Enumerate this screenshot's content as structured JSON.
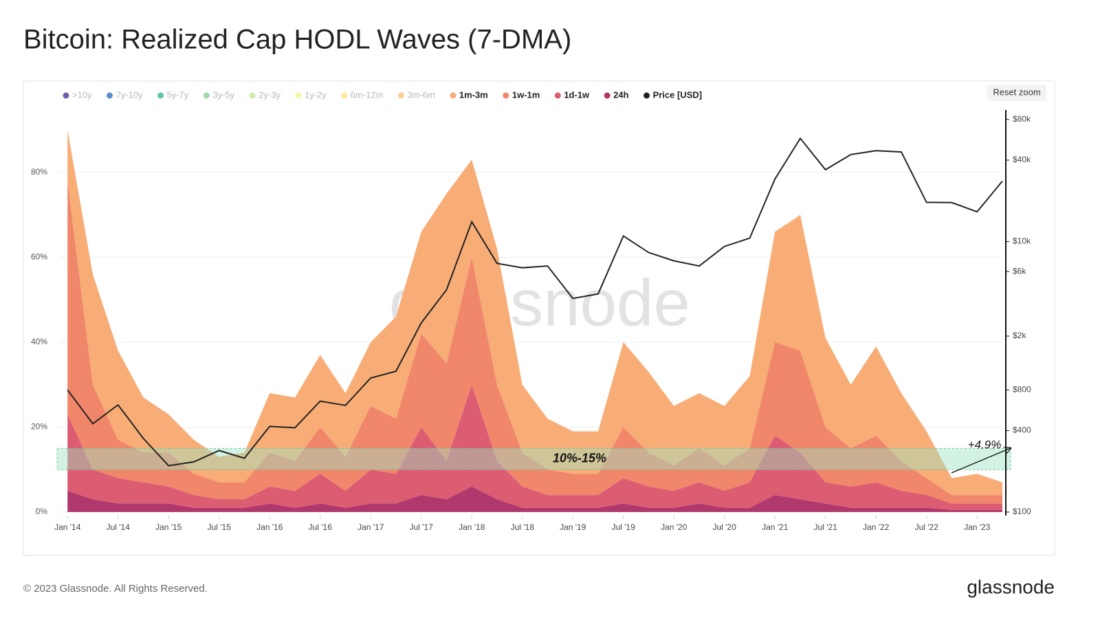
{
  "chart_data": {
    "type": "stacked_area",
    "title": "Bitcoin: Realized Cap HODL Waves (7-DMA)",
    "watermark": "glassnode",
    "reset_zoom": "Reset zoom",
    "footer": "© 2023 Glassnode. All Rights Reserved.",
    "logo": "glassnode",
    "x": [
      "2014-01",
      "2014-04",
      "2014-07",
      "2014-10",
      "2015-01",
      "2015-04",
      "2015-07",
      "2015-10",
      "2016-01",
      "2016-04",
      "2016-07",
      "2016-10",
      "2017-01",
      "2017-04",
      "2017-07",
      "2017-10",
      "2018-01",
      "2018-04",
      "2018-07",
      "2018-10",
      "2019-01",
      "2019-04",
      "2019-07",
      "2019-10",
      "2020-01",
      "2020-04",
      "2020-07",
      "2020-10",
      "2021-01",
      "2021-04",
      "2021-07",
      "2021-10",
      "2022-01",
      "2022-04",
      "2022-07",
      "2022-10",
      "2023-01",
      "2023-04"
    ],
    "xlim": [
      "2013-12",
      "2023-04"
    ],
    "xticks": [
      {
        "value": "2014-01",
        "label": "Jan '14"
      },
      {
        "value": "2014-07",
        "label": "Jul '14"
      },
      {
        "value": "2015-01",
        "label": "Jan '15"
      },
      {
        "value": "2015-07",
        "label": "Jul '15"
      },
      {
        "value": "2016-01",
        "label": "Jan '16"
      },
      {
        "value": "2016-07",
        "label": "Jul '16"
      },
      {
        "value": "2017-01",
        "label": "Jan '17"
      },
      {
        "value": "2017-07",
        "label": "Jul '17"
      },
      {
        "value": "2018-01",
        "label": "Jan '18"
      },
      {
        "value": "2018-07",
        "label": "Jul '18"
      },
      {
        "value": "2019-01",
        "label": "Jan '19"
      },
      {
        "value": "2019-07",
        "label": "Jul '19"
      },
      {
        "value": "2020-01",
        "label": "Jan '20"
      },
      {
        "value": "2020-07",
        "label": "Jul '20"
      },
      {
        "value": "2021-01",
        "label": "Jan '21"
      },
      {
        "value": "2021-07",
        "label": "Jul '21"
      },
      {
        "value": "2022-01",
        "label": "Jan '22"
      },
      {
        "value": "2022-07",
        "label": "Jul '22"
      },
      {
        "value": "2023-01",
        "label": "Jan '23"
      }
    ],
    "ylim": [
      0,
      94.7
    ],
    "yticks": [
      {
        "value": 0,
        "label": "0%"
      },
      {
        "value": 20,
        "label": "20%"
      },
      {
        "value": 40,
        "label": "40%"
      },
      {
        "value": 60,
        "label": "60%"
      },
      {
        "value": 80,
        "label": "80%"
      }
    ],
    "y2lim": [
      100,
      94000
    ],
    "y2scale": "log",
    "y2ticks": [
      {
        "value": 100,
        "label": "$100"
      },
      {
        "value": 400,
        "label": "$400"
      },
      {
        "value": 800,
        "label": "$800"
      },
      {
        "value": 2000,
        "label": "$2k"
      },
      {
        "value": 6000,
        "label": "$6k"
      },
      {
        "value": 10000,
        "label": "$10k"
      },
      {
        "value": 40000,
        "label": "$40k"
      },
      {
        "value": 80000,
        "label": "$80k"
      }
    ],
    "grid": true,
    "legend": "top-left",
    "band": {
      "from": 10,
      "to": 15,
      "label": "10%-15%",
      "color": "#9be3c4"
    },
    "annotation": {
      "text": "+4.9%"
    },
    "series": [
      {
        "name": ">10y",
        "color": "#5b3f9a",
        "hidden": true
      },
      {
        "name": "7y-10y",
        "color": "#3b7bbf",
        "hidden": true
      },
      {
        "name": "5y-7y",
        "color": "#45b8a5",
        "hidden": true
      },
      {
        "name": "3y-5y",
        "color": "#8fd19e",
        "hidden": true
      },
      {
        "name": "2y-3y",
        "color": "#c8e89a",
        "hidden": true
      },
      {
        "name": "1y-2y",
        "color": "#f5f59a",
        "hidden": true
      },
      {
        "name": "6m-12m",
        "color": "#fde58f",
        "hidden": true
      },
      {
        "name": "3m-6m",
        "color": "#fbc77e",
        "hidden": true
      },
      {
        "name": "1m-3m",
        "color": "#f8ad77",
        "values": [
          12,
          26,
          21,
          13,
          9,
          8,
          6,
          7,
          14,
          15,
          17,
          15,
          15,
          24,
          24,
          40,
          23,
          32,
          16,
          12,
          10,
          10,
          20,
          19,
          14,
          13,
          14,
          17,
          26,
          32,
          21,
          15,
          21,
          16,
          11,
          4,
          5,
          3
        ]
      },
      {
        "name": "1w-1m",
        "color": "#f0866a",
        "values": [
          55,
          20,
          9,
          7,
          8,
          5,
          4,
          4,
          8,
          7,
          11,
          8,
          15,
          13,
          22,
          23,
          30,
          18,
          8,
          6,
          5,
          5,
          12,
          8,
          6,
          8,
          6,
          8,
          22,
          24,
          13,
          9,
          11,
          7,
          4,
          2,
          2,
          2
        ]
      },
      {
        "name": "1d-1w",
        "color": "#dc5c72",
        "values": [
          18,
          7,
          6,
          5,
          4,
          3,
          2,
          2,
          4,
          4,
          7,
          4,
          8,
          7,
          16,
          9,
          24,
          9,
          5,
          3,
          3,
          3,
          6,
          5,
          4,
          5,
          4,
          6,
          14,
          11,
          5,
          5,
          6,
          4,
          3,
          1.5,
          1.5,
          1.5
        ]
      },
      {
        "name": "24h",
        "color": "#b0386c",
        "values": [
          5,
          3,
          2,
          2,
          2,
          1,
          1,
          1,
          2,
          1,
          2,
          1,
          2,
          2,
          4,
          3,
          6,
          3,
          1,
          1,
          1,
          1,
          2,
          1,
          1,
          2,
          1,
          1,
          4,
          3,
          2,
          1,
          1,
          1,
          1,
          0.5,
          0.5,
          0.5
        ]
      },
      {
        "name": "Price [USD]",
        "color": "#222222",
        "axis": "y2",
        "values": [
          800,
          450,
          620,
          350,
          220,
          235,
          285,
          250,
          430,
          420,
          660,
          615,
          980,
          1100,
          2500,
          4400,
          14000,
          6900,
          6400,
          6600,
          3800,
          4100,
          11000,
          8300,
          7200,
          6600,
          9200,
          10600,
          29000,
          58000,
          34000,
          44000,
          47000,
          46000,
          19500,
          19400,
          16600,
          28000
        ]
      }
    ]
  }
}
